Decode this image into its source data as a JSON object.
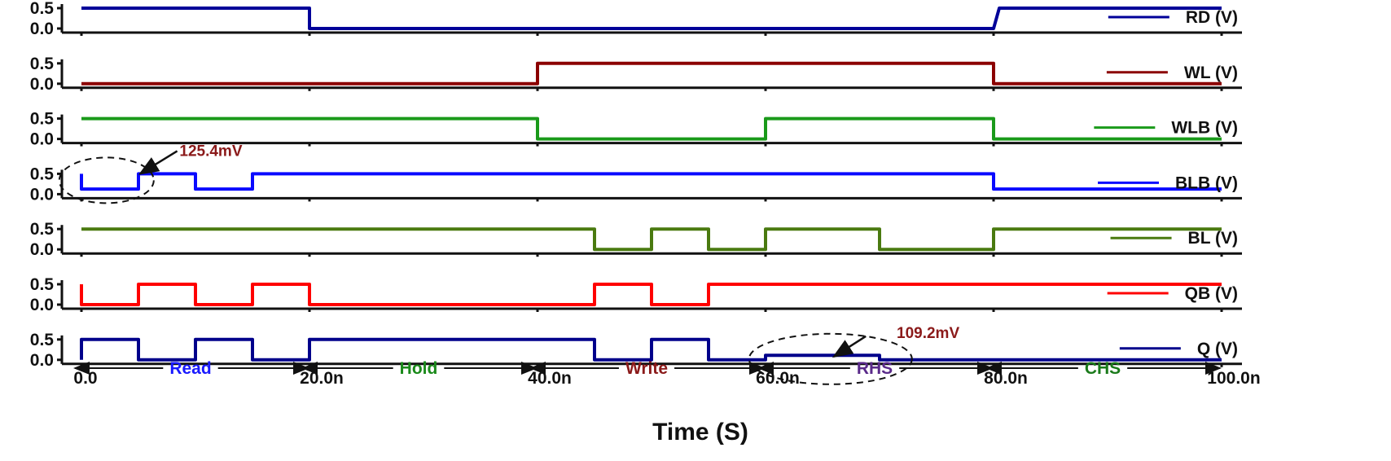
{
  "chart_data": {
    "type": "line",
    "subtype": "stacked-step-timing-diagram",
    "xlabel": "Time (S)",
    "x_unit": "ns",
    "xlim": [
      0,
      100
    ],
    "x_ticks": [
      0,
      20,
      40,
      60,
      80,
      100
    ],
    "x_tick_labels": [
      "0.0",
      "20.0n",
      "40.0n",
      "60.0n",
      "80.0n",
      "100.0n"
    ],
    "y_ticks": [
      0.0,
      0.5
    ],
    "y_tick_labels": [
      "0.0",
      "0.5"
    ],
    "grid": false,
    "legend_placement": "right of each panel",
    "series": [
      {
        "name": "RD (V)",
        "color": "#000099",
        "points": [
          [
            0,
            0.5
          ],
          [
            20,
            0.5
          ],
          [
            20,
            0
          ],
          [
            80,
            0
          ],
          [
            80.5,
            0.5
          ],
          [
            100,
            0.5
          ]
        ]
      },
      {
        "name": "WL (V)",
        "color": "#8b0000",
        "points": [
          [
            0,
            0
          ],
          [
            40,
            0
          ],
          [
            40,
            0.5
          ],
          [
            80,
            0.5
          ],
          [
            80,
            0
          ],
          [
            100,
            0
          ]
        ]
      },
      {
        "name": "WLB (V)",
        "color": "#1a9a1a",
        "points": [
          [
            0,
            0.5
          ],
          [
            40,
            0.5
          ],
          [
            40,
            0
          ],
          [
            60,
            0
          ],
          [
            60,
            0.5
          ],
          [
            80,
            0.5
          ],
          [
            80,
            0
          ],
          [
            100,
            0
          ]
        ]
      },
      {
        "name": "BLB (V)",
        "color": "#0a0aff",
        "points": [
          [
            0,
            0.5
          ],
          [
            0,
            0.125
          ],
          [
            5,
            0.125
          ],
          [
            5,
            0.5
          ],
          [
            10,
            0.5
          ],
          [
            10,
            0.125
          ],
          [
            15,
            0.125
          ],
          [
            15,
            0.5
          ],
          [
            80,
            0.5
          ],
          [
            80,
            0.125
          ],
          [
            100,
            0.125
          ]
        ]
      },
      {
        "name": "BL (V)",
        "color": "#4a7a10",
        "points": [
          [
            0,
            0.5
          ],
          [
            45,
            0.5
          ],
          [
            45,
            0
          ],
          [
            50,
            0
          ],
          [
            50,
            0.5
          ],
          [
            55,
            0.5
          ],
          [
            55,
            0
          ],
          [
            60,
            0
          ],
          [
            60,
            0.5
          ],
          [
            70,
            0.5
          ],
          [
            70,
            0
          ],
          [
            80,
            0
          ],
          [
            80,
            0.5
          ],
          [
            100,
            0.5
          ]
        ]
      },
      {
        "name": "QB (V)",
        "color": "#ff0000",
        "points": [
          [
            0,
            0.5
          ],
          [
            0,
            0
          ],
          [
            5,
            0
          ],
          [
            5,
            0.5
          ],
          [
            10,
            0.5
          ],
          [
            10,
            0
          ],
          [
            15,
            0
          ],
          [
            15,
            0.5
          ],
          [
            20,
            0.5
          ],
          [
            20,
            0
          ],
          [
            45,
            0
          ],
          [
            45,
            0.5
          ],
          [
            50,
            0.5
          ],
          [
            50,
            0
          ],
          [
            55,
            0
          ],
          [
            55,
            0.5
          ],
          [
            100,
            0.5
          ]
        ]
      },
      {
        "name": "Q (V)",
        "color": "#00008b",
        "points": [
          [
            0,
            0
          ],
          [
            0,
            0.5
          ],
          [
            5,
            0.5
          ],
          [
            5,
            0
          ],
          [
            10,
            0
          ],
          [
            10,
            0.5
          ],
          [
            15,
            0.5
          ],
          [
            15,
            0
          ],
          [
            20,
            0
          ],
          [
            20,
            0.5
          ],
          [
            45,
            0.5
          ],
          [
            45,
            0
          ],
          [
            50,
            0
          ],
          [
            50,
            0.5
          ],
          [
            55,
            0.5
          ],
          [
            55,
            0
          ],
          [
            60,
            0
          ],
          [
            60,
            0.109
          ],
          [
            70,
            0.109
          ],
          [
            70,
            0
          ],
          [
            100,
            0
          ]
        ]
      }
    ],
    "annotations": [
      {
        "text": "125.4mV",
        "series": "BLB (V)",
        "x": 5,
        "y": 0.1254
      },
      {
        "text": "109.2mV",
        "series": "Q (V)",
        "x": 66,
        "y": 0.1092
      }
    ],
    "phases": [
      {
        "label": "Read",
        "start": 0,
        "end": 20,
        "color": "#1a1aff"
      },
      {
        "label": "Hold",
        "start": 20,
        "end": 40,
        "color": "#1a8a1a"
      },
      {
        "label": "Write",
        "start": 40,
        "end": 60,
        "color": "#8b1a1a"
      },
      {
        "label": "RHS",
        "start": 60,
        "end": 80,
        "color": "#5a2a8a"
      },
      {
        "label": "CHS",
        "start": 80,
        "end": 100,
        "color": "#1a7a1a"
      }
    ]
  }
}
